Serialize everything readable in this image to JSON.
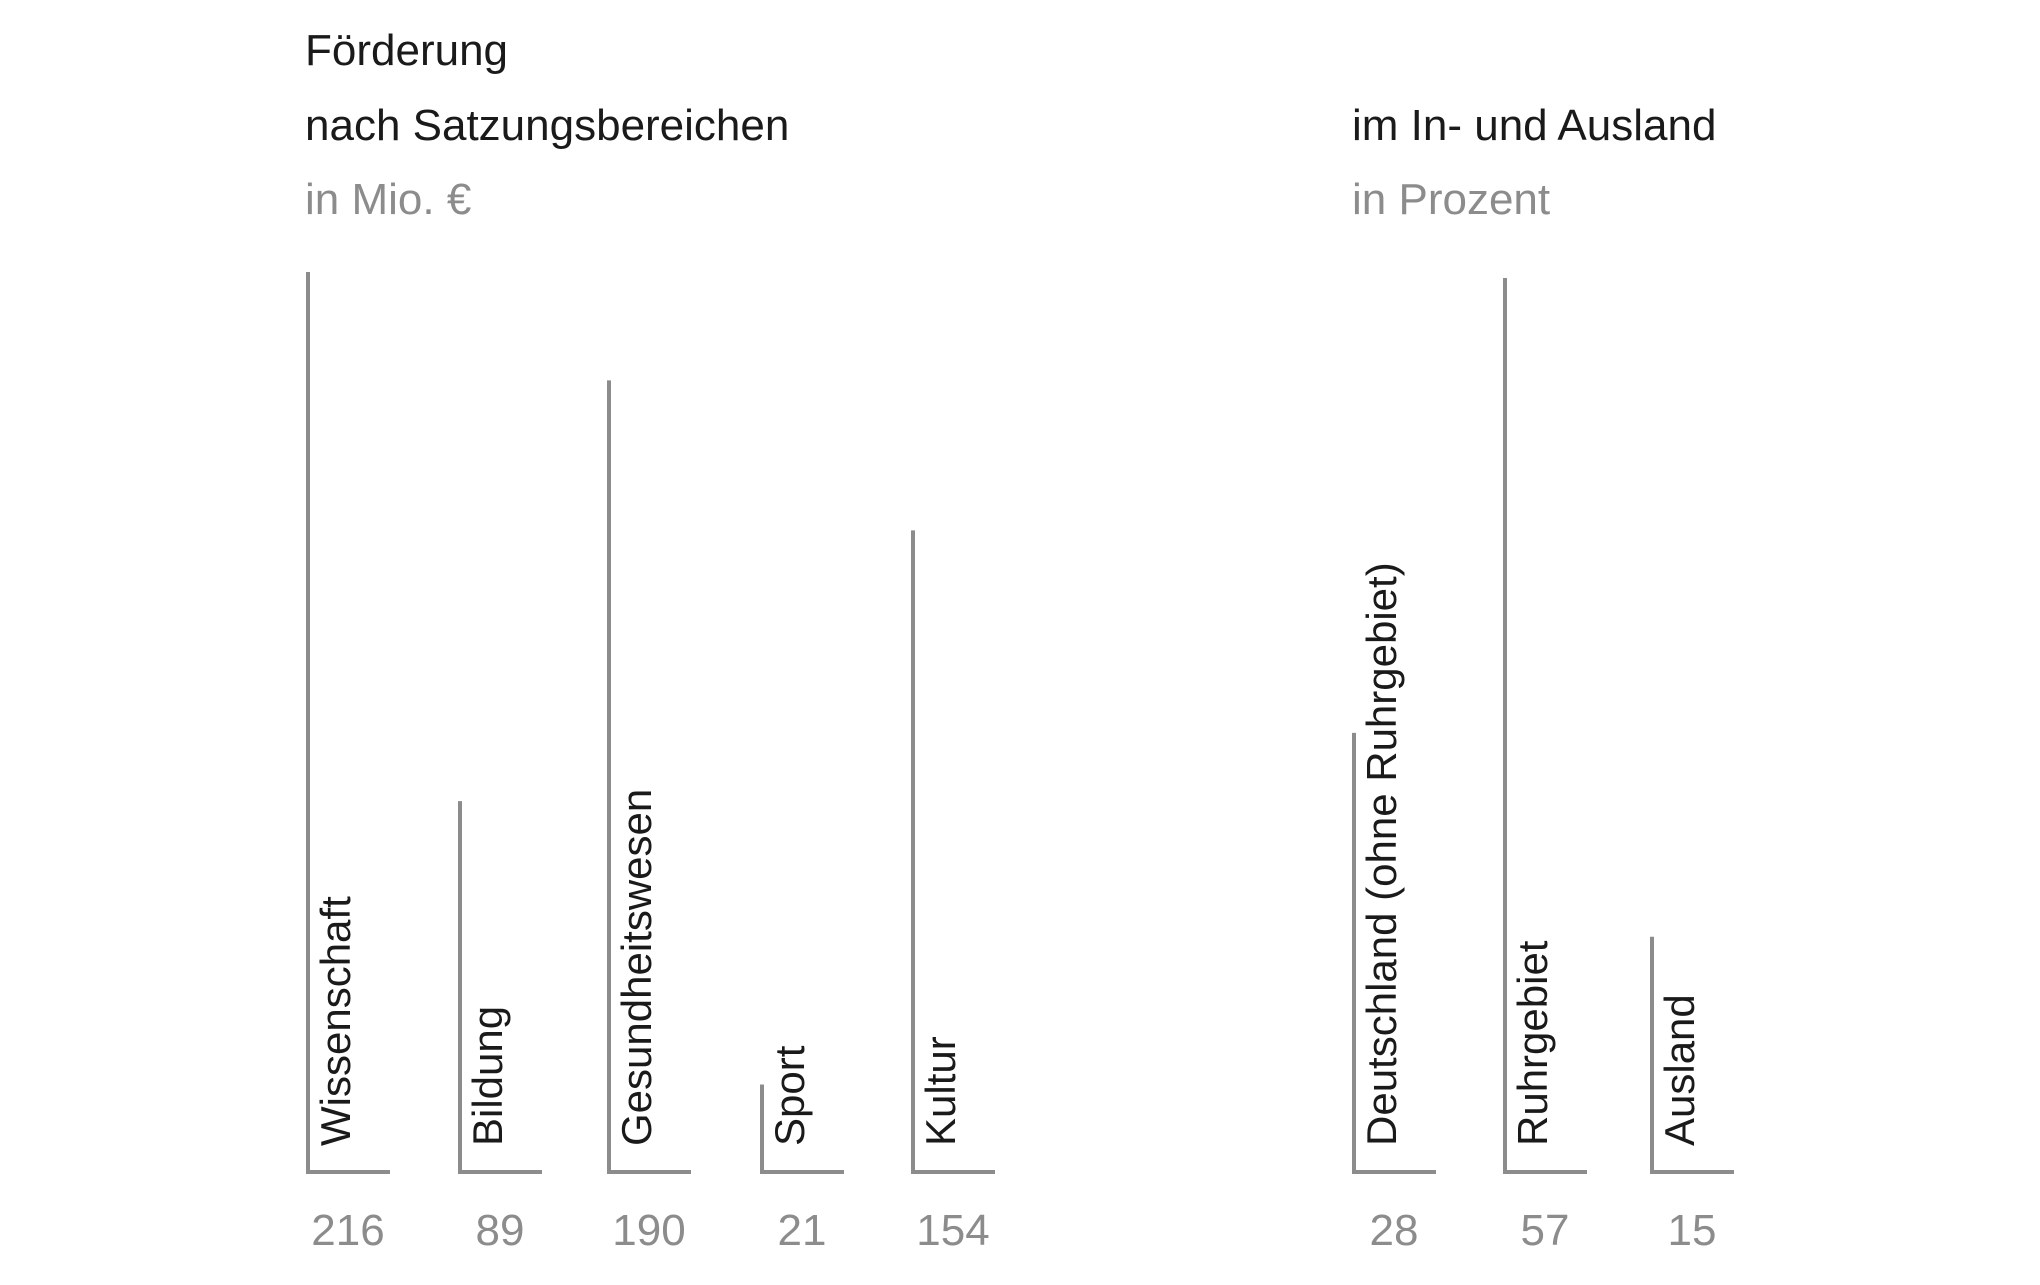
{
  "chart_data": [
    {
      "type": "bar",
      "title_lines": [
        "Förderung",
        "nach Satzungsbereichen"
      ],
      "unit": "in Mio. €",
      "categories": [
        "Wissenschaft",
        "Bildung",
        "Gesundheitswesen",
        "Sport",
        "Kultur"
      ],
      "values": [
        216,
        89,
        190,
        21,
        154
      ],
      "value_labels": [
        "216",
        "89",
        "190",
        "21",
        "154"
      ],
      "color": "#8c8c8c"
    },
    {
      "type": "bar",
      "title_lines": [
        "im In- und Ausland"
      ],
      "unit": "in Prozent",
      "categories": [
        "Deutschland  (ohne Ruhrgebiet)",
        "Ruhrgebiet",
        "Ausland"
      ],
      "values": [
        28,
        57,
        15
      ],
      "value_labels": [
        "28",
        "57",
        "15"
      ],
      "color": "#8c8c8c"
    }
  ]
}
